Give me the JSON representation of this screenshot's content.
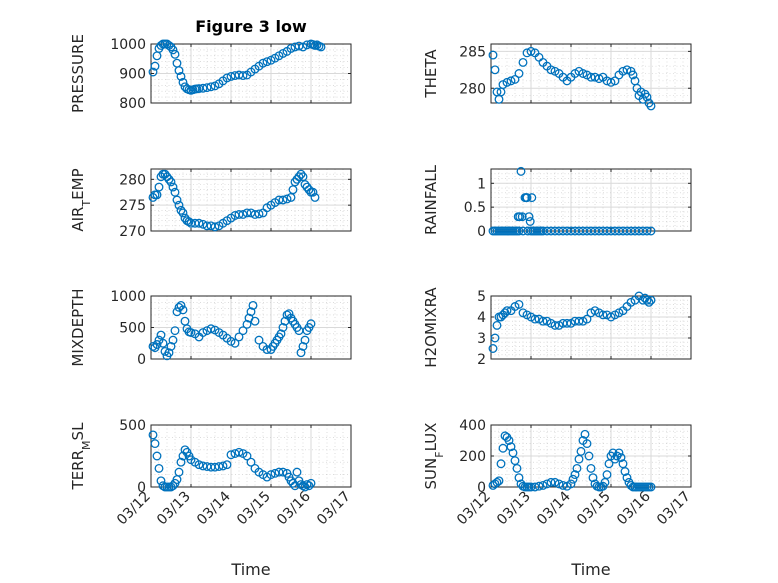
{
  "chart_data": [
    {
      "type": "scatter",
      "title": "Figure 3 low",
      "ylabel": "PRESSURE",
      "xlabel": "",
      "xlim": [
        0,
        5
      ],
      "ylim": [
        800,
        1000
      ],
      "yticks": [
        800,
        900,
        1000
      ],
      "ytick_labels": [
        "800",
        "900",
        "1000"
      ],
      "xtick_labels": [],
      "grid": "on",
      "marker_color": "#0072bd",
      "series": [
        {
          "x": [
            0.05,
            0.1,
            0.15,
            0.2,
            0.25,
            0.3,
            0.35,
            0.4,
            0.45,
            0.5,
            0.55,
            0.6,
            0.65,
            0.7,
            0.75,
            0.8,
            0.85,
            0.9,
            0.95,
            1.0,
            1.05,
            1.1,
            1.15,
            1.2,
            1.3,
            1.4,
            1.5,
            1.6,
            1.7,
            1.8,
            1.9,
            2.0,
            2.1,
            2.2,
            2.3,
            2.4,
            2.5,
            2.6,
            2.7,
            2.8,
            2.9,
            3.0,
            3.1,
            3.2,
            3.3,
            3.4,
            3.5,
            3.6,
            3.7,
            3.8,
            3.9,
            4.0,
            4.05,
            4.1,
            4.15,
            4.2,
            4.25
          ],
          "y": [
            905,
            925,
            960,
            985,
            995,
            1000,
            1000,
            1000,
            995,
            990,
            980,
            965,
            935,
            910,
            890,
            870,
            855,
            848,
            845,
            843,
            845,
            847,
            848,
            849,
            850,
            852,
            855,
            858,
            865,
            875,
            885,
            890,
            893,
            895,
            893,
            895,
            905,
            915,
            925,
            935,
            940,
            945,
            952,
            960,
            968,
            975,
            985,
            990,
            993,
            990,
            997,
            1000,
            998,
            995,
            997,
            993,
            990
          ]
        }
      ]
    },
    {
      "type": "scatter",
      "ylabel": "THETA",
      "xlabel": "",
      "xlim": [
        0,
        5
      ],
      "ylim": [
        278,
        286
      ],
      "yticks": [
        280,
        285
      ],
      "ytick_labels": [
        "280",
        "285"
      ],
      "xtick_labels": [],
      "grid": "on",
      "marker_color": "#0072bd",
      "series": [
        {
          "x": [
            0.05,
            0.1,
            0.15,
            0.2,
            0.25,
            0.3,
            0.4,
            0.5,
            0.6,
            0.7,
            0.8,
            0.9,
            1.0,
            1.1,
            1.2,
            1.3,
            1.4,
            1.5,
            1.6,
            1.7,
            1.8,
            1.9,
            2.0,
            2.1,
            2.2,
            2.3,
            2.4,
            2.5,
            2.6,
            2.7,
            2.8,
            2.9,
            3.0,
            3.1,
            3.2,
            3.3,
            3.4,
            3.5,
            3.55,
            3.6,
            3.65,
            3.7,
            3.75,
            3.8,
            3.85,
            3.9,
            3.95,
            4.0
          ],
          "y": [
            284.5,
            282.5,
            279.5,
            278.5,
            279.5,
            280.5,
            280.8,
            281,
            281.2,
            282,
            283.5,
            284.8,
            285,
            284.8,
            284.2,
            283.5,
            283,
            282.5,
            282.3,
            282,
            281.5,
            281,
            281.5,
            282,
            282.3,
            282,
            281.8,
            281.5,
            281.5,
            281.3,
            281.5,
            281,
            280.8,
            281,
            281.8,
            282.3,
            282.5,
            282.3,
            281.8,
            281,
            280,
            279,
            279.5,
            278.5,
            279.2,
            278.8,
            278,
            277.6
          ]
        }
      ]
    },
    {
      "type": "scatter",
      "ylabel": "AIR_TEMP",
      "xlabel": "",
      "xlim": [
        0,
        5
      ],
      "ylim": [
        270,
        282
      ],
      "yticks": [
        270,
        275,
        280
      ],
      "ytick_labels": [
        "270",
        "275",
        "280"
      ],
      "xtick_labels": [],
      "grid": "on",
      "marker_color": "#0072bd",
      "series": [
        {
          "x": [
            0.05,
            0.1,
            0.15,
            0.2,
            0.25,
            0.3,
            0.35,
            0.4,
            0.45,
            0.5,
            0.55,
            0.6,
            0.65,
            0.7,
            0.75,
            0.8,
            0.85,
            0.9,
            0.95,
            1.0,
            1.1,
            1.2,
            1.3,
            1.4,
            1.5,
            1.6,
            1.7,
            1.8,
            1.9,
            2.0,
            2.1,
            2.2,
            2.3,
            2.4,
            2.5,
            2.6,
            2.7,
            2.8,
            2.9,
            3.0,
            3.1,
            3.2,
            3.3,
            3.4,
            3.5,
            3.55,
            3.6,
            3.65,
            3.7,
            3.75,
            3.8,
            3.85,
            3.9,
            3.95,
            4.0,
            4.05,
            4.1
          ],
          "y": [
            276.5,
            277,
            277,
            278.5,
            280.5,
            281,
            281,
            280.5,
            280,
            279.5,
            278.5,
            277.5,
            276,
            275,
            274,
            273.5,
            272.5,
            272,
            271.8,
            271.5,
            271.5,
            271.5,
            271.3,
            271,
            271,
            270.8,
            271,
            271.5,
            272,
            272.5,
            273,
            273.2,
            273.2,
            273.5,
            273.5,
            273.2,
            273.3,
            273.5,
            274.5,
            275,
            275.5,
            276,
            276,
            276.2,
            276.5,
            278,
            279.5,
            280,
            280.5,
            281,
            280.5,
            279,
            278.5,
            278,
            277.5,
            277.5,
            276.5
          ]
        }
      ]
    },
    {
      "type": "scatter",
      "ylabel": "RAINFALL",
      "xlabel": "",
      "xlim": [
        0,
        5
      ],
      "ylim": [
        0,
        1.3
      ],
      "yticks": [
        0,
        0.5,
        1
      ],
      "ytick_labels": [
        "0",
        "0.5",
        "1"
      ],
      "xtick_labels": [],
      "grid": "on",
      "marker_color": "#0072bd",
      "series": [
        {
          "x": [
            0.05,
            0.1,
            0.15,
            0.2,
            0.25,
            0.3,
            0.35,
            0.4,
            0.45,
            0.5,
            0.55,
            0.6,
            0.65,
            0.68,
            0.7,
            0.72,
            0.75,
            0.78,
            0.8,
            0.85,
            0.88,
            0.9,
            0.92,
            0.95,
            0.98,
            1.0,
            1.02,
            1.05,
            1.1,
            1.15,
            1.2,
            1.25,
            1.3,
            1.4,
            1.5,
            1.6,
            1.7,
            1.8,
            1.9,
            2.0,
            2.1,
            2.2,
            2.3,
            2.4,
            2.5,
            2.6,
            2.7,
            2.8,
            2.9,
            3.0,
            3.1,
            3.2,
            3.3,
            3.4,
            3.5,
            3.6,
            3.7,
            3.8,
            3.9,
            4.0
          ],
          "y": [
            0,
            0,
            0,
            0,
            0,
            0,
            0,
            0,
            0,
            0,
            0,
            0,
            0,
            0.3,
            0,
            0.3,
            1.25,
            0.3,
            0,
            0.7,
            0.7,
            0.7,
            0,
            0.3,
            0.2,
            0,
            0.7,
            0,
            0,
            0,
            0,
            0,
            0,
            0,
            0,
            0,
            0,
            0,
            0,
            0,
            0,
            0,
            0,
            0,
            0,
            0,
            0,
            0,
            0,
            0,
            0,
            0,
            0,
            0,
            0,
            0,
            0,
            0,
            0,
            0
          ]
        }
      ]
    },
    {
      "type": "scatter",
      "ylabel": "MIXDEPTH",
      "xlabel": "",
      "xlim": [
        0,
        5
      ],
      "ylim": [
        0,
        1000
      ],
      "yticks": [
        0,
        500,
        1000
      ],
      "ytick_labels": [
        "0",
        "500",
        "1000"
      ],
      "xtick_labels": [],
      "grid": "on",
      "marker_color": "#0072bd",
      "series": [
        {
          "x": [
            0.05,
            0.1,
            0.15,
            0.2,
            0.25,
            0.3,
            0.35,
            0.4,
            0.45,
            0.5,
            0.55,
            0.6,
            0.65,
            0.7,
            0.75,
            0.8,
            0.85,
            0.9,
            0.95,
            1.0,
            1.1,
            1.2,
            1.3,
            1.4,
            1.5,
            1.6,
            1.7,
            1.8,
            1.9,
            2.0,
            2.1,
            2.2,
            2.3,
            2.4,
            2.45,
            2.5,
            2.55,
            2.6,
            2.7,
            2.8,
            2.9,
            3.0,
            3.05,
            3.1,
            3.15,
            3.2,
            3.25,
            3.3,
            3.35,
            3.4,
            3.45,
            3.5,
            3.55,
            3.6,
            3.65,
            3.7,
            3.75,
            3.8,
            3.85,
            3.9,
            3.95,
            4.0
          ],
          "y": [
            200,
            180,
            230,
            300,
            380,
            250,
            120,
            50,
            100,
            200,
            300,
            450,
            750,
            820,
            850,
            780,
            600,
            480,
            430,
            420,
            400,
            350,
            420,
            450,
            480,
            460,
            420,
            380,
            330,
            280,
            250,
            350,
            450,
            550,
            650,
            750,
            850,
            600,
            300,
            200,
            150,
            150,
            200,
            250,
            300,
            350,
            400,
            500,
            600,
            700,
            720,
            650,
            600,
            550,
            500,
            450,
            100,
            200,
            300,
            450,
            500,
            560
          ]
        }
      ]
    },
    {
      "type": "scatter",
      "ylabel": "H2OMIXRA",
      "xlabel": "",
      "xlim": [
        0,
        5
      ],
      "ylim": [
        2,
        5
      ],
      "yticks": [
        2,
        3,
        4,
        5
      ],
      "ytick_labels": [
        "2",
        "3",
        "4",
        "5"
      ],
      "xtick_labels": [],
      "grid": "on",
      "marker_color": "#0072bd",
      "series": [
        {
          "x": [
            0.05,
            0.1,
            0.15,
            0.2,
            0.25,
            0.3,
            0.35,
            0.4,
            0.5,
            0.6,
            0.7,
            0.8,
            0.9,
            1.0,
            1.1,
            1.2,
            1.3,
            1.4,
            1.5,
            1.6,
            1.7,
            1.8,
            1.9,
            2.0,
            2.1,
            2.2,
            2.3,
            2.4,
            2.5,
            2.6,
            2.7,
            2.8,
            2.9,
            3.0,
            3.1,
            3.2,
            3.3,
            3.4,
            3.5,
            3.6,
            3.7,
            3.8,
            3.85,
            3.9,
            3.95,
            4.0
          ],
          "y": [
            2.5,
            3.0,
            3.6,
            4.0,
            4.0,
            4.1,
            4.2,
            4.3,
            4.3,
            4.5,
            4.6,
            4.2,
            4.1,
            4.0,
            3.9,
            3.9,
            3.8,
            3.8,
            3.7,
            3.6,
            3.6,
            3.7,
            3.7,
            3.7,
            3.8,
            3.8,
            3.8,
            3.9,
            4.2,
            4.3,
            4.2,
            4.1,
            4.1,
            4.0,
            4.1,
            4.2,
            4.3,
            4.5,
            4.7,
            4.8,
            5.0,
            4.8,
            4.9,
            4.8,
            4.7,
            4.8
          ]
        }
      ]
    },
    {
      "type": "scatter",
      "ylabel": "TERR_MSL",
      "xlabel": "Time",
      "xlim": [
        0,
        5
      ],
      "ylim": [
        0,
        500
      ],
      "yticks": [
        0,
        500
      ],
      "ytick_labels": [
        "0",
        "500"
      ],
      "xtick_labels": [
        "03/12",
        "03/13",
        "03/14",
        "03/15",
        "03/16",
        "03/17"
      ],
      "grid": "on",
      "marker_color": "#0072bd",
      "series": [
        {
          "x": [
            0.05,
            0.1,
            0.15,
            0.2,
            0.25,
            0.3,
            0.35,
            0.4,
            0.45,
            0.5,
            0.55,
            0.6,
            0.65,
            0.7,
            0.75,
            0.8,
            0.85,
            0.9,
            0.95,
            1.0,
            1.1,
            1.2,
            1.3,
            1.4,
            1.5,
            1.6,
            1.7,
            1.8,
            1.9,
            2.0,
            2.1,
            2.2,
            2.3,
            2.4,
            2.5,
            2.6,
            2.7,
            2.8,
            2.9,
            3.0,
            3.1,
            3.2,
            3.3,
            3.4,
            3.45,
            3.5,
            3.55,
            3.6,
            3.65,
            3.7,
            3.75,
            3.8,
            3.85,
            3.9,
            3.95,
            4.0
          ],
          "y": [
            420,
            350,
            250,
            150,
            50,
            10,
            0,
            0,
            0,
            0,
            10,
            30,
            60,
            120,
            200,
            250,
            300,
            280,
            250,
            220,
            200,
            180,
            170,
            165,
            160,
            160,
            165,
            170,
            180,
            260,
            270,
            280,
            270,
            250,
            200,
            150,
            120,
            100,
            80,
            100,
            110,
            120,
            120,
            110,
            80,
            50,
            30,
            10,
            120,
            50,
            20,
            10,
            0,
            20,
            10,
            30
          ]
        }
      ]
    },
    {
      "type": "scatter",
      "ylabel": "SUN_FLUX",
      "xlabel": "Time",
      "xlim": [
        0,
        5
      ],
      "ylim": [
        0,
        400
      ],
      "yticks": [
        0,
        200,
        400
      ],
      "ytick_labels": [
        "0",
        "200",
        "400"
      ],
      "xtick_labels": [
        "03/12",
        "03/13",
        "03/14",
        "03/15",
        "03/16",
        "03/17"
      ],
      "grid": "on",
      "marker_color": "#0072bd",
      "series": [
        {
          "x": [
            0.05,
            0.1,
            0.15,
            0.2,
            0.25,
            0.3,
            0.35,
            0.4,
            0.45,
            0.5,
            0.55,
            0.6,
            0.65,
            0.7,
            0.75,
            0.8,
            0.85,
            0.9,
            0.95,
            1.0,
            1.1,
            1.2,
            1.3,
            1.4,
            1.5,
            1.6,
            1.7,
            1.8,
            1.9,
            2.0,
            2.05,
            2.1,
            2.15,
            2.2,
            2.25,
            2.3,
            2.35,
            2.4,
            2.45,
            2.5,
            2.55,
            2.6,
            2.65,
            2.7,
            2.75,
            2.8,
            2.85,
            2.9,
            2.95,
            3.0,
            3.05,
            3.1,
            3.15,
            3.2,
            3.25,
            3.3,
            3.35,
            3.4,
            3.45,
            3.5,
            3.55,
            3.6,
            3.65,
            3.7,
            3.75,
            3.8,
            3.85,
            3.9,
            3.95,
            4.0
          ],
          "y": [
            10,
            20,
            30,
            40,
            150,
            250,
            330,
            320,
            300,
            260,
            220,
            170,
            120,
            60,
            20,
            5,
            0,
            0,
            0,
            0,
            0,
            5,
            10,
            20,
            30,
            30,
            20,
            10,
            5,
            20,
            50,
            80,
            120,
            180,
            230,
            300,
            340,
            280,
            200,
            120,
            60,
            20,
            5,
            0,
            0,
            5,
            30,
            80,
            150,
            200,
            220,
            180,
            200,
            220,
            190,
            150,
            100,
            60,
            30,
            10,
            0,
            0,
            0,
            0,
            0,
            0,
            0,
            0,
            0,
            0
          ]
        }
      ]
    }
  ]
}
